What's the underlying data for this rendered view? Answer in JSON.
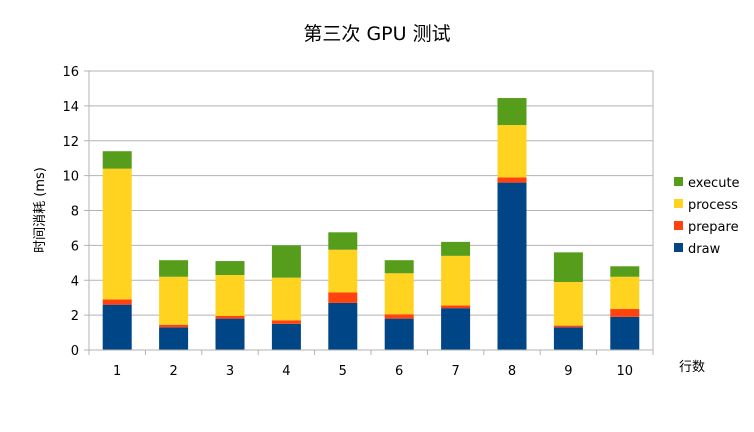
{
  "chart_data": {
    "type": "bar",
    "stacked": true,
    "title": "第三次 GPU 测试",
    "xlabel": "行数",
    "ylabel": "时间消耗 (ms)",
    "ylim": [
      0,
      16
    ],
    "yticks": [
      0,
      2,
      4,
      6,
      8,
      10,
      12,
      14,
      16
    ],
    "grid": true,
    "legend_position": "right",
    "categories": [
      "1",
      "2",
      "3",
      "4",
      "5",
      "6",
      "7",
      "8",
      "9",
      "10"
    ],
    "series": [
      {
        "name": "draw",
        "color": "#004586",
        "values": [
          2.6,
          1.3,
          1.8,
          1.5,
          2.7,
          1.8,
          2.4,
          9.6,
          1.3,
          1.9
        ]
      },
      {
        "name": "prepare",
        "color": "#ff420e",
        "values": [
          0.3,
          0.15,
          0.15,
          0.2,
          0.6,
          0.25,
          0.15,
          0.3,
          0.1,
          0.45
        ]
      },
      {
        "name": "process",
        "color": "#ffd320",
        "values": [
          7.5,
          2.75,
          2.35,
          2.45,
          2.45,
          2.35,
          2.85,
          3.0,
          2.5,
          1.85
        ]
      },
      {
        "name": "execute",
        "color": "#579d1c",
        "values": [
          1.0,
          0.95,
          0.8,
          1.85,
          1.0,
          0.75,
          0.8,
          1.55,
          1.7,
          0.6
        ]
      }
    ],
    "legend_order": [
      "execute",
      "process",
      "prepare",
      "draw"
    ]
  }
}
